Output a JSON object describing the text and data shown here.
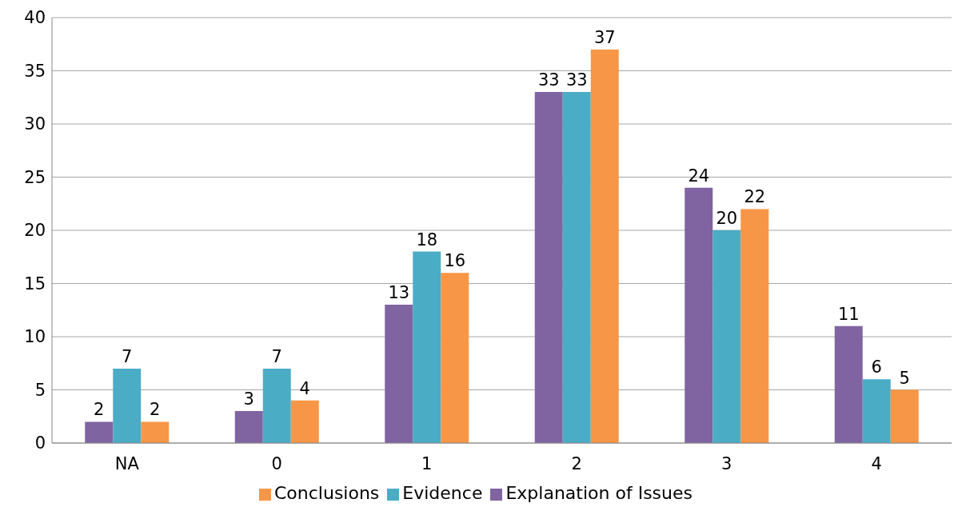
{
  "chart_data": {
    "type": "bar",
    "categories": [
      "NA",
      "0",
      "1",
      "2",
      "3",
      "4"
    ],
    "series": [
      {
        "name": "Explanation of Issues",
        "color": "#8064a2",
        "values": [
          2,
          3,
          13,
          33,
          24,
          11
        ]
      },
      {
        "name": "Evidence",
        "color": "#4bacc6",
        "values": [
          7,
          7,
          18,
          33,
          20,
          6
        ]
      },
      {
        "name": "Conclusions",
        "color": "#f79646",
        "values": [
          2,
          4,
          16,
          37,
          22,
          5
        ]
      }
    ],
    "ylim": [
      0,
      40
    ],
    "yticks": [
      0,
      5,
      10,
      15,
      20,
      25,
      30,
      35,
      40
    ],
    "grid": "y",
    "legend": "bottom",
    "data_labels": true
  }
}
